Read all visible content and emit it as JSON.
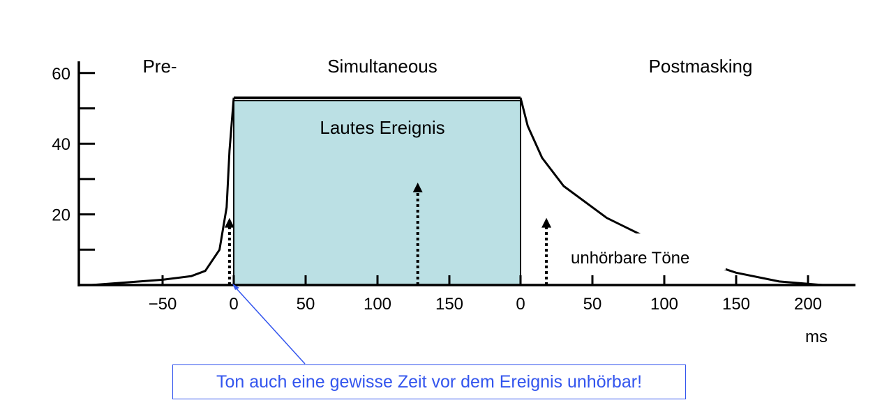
{
  "chart_data": {
    "type": "line",
    "y_ticks": [
      "60",
      "40",
      "20"
    ],
    "y_minor_ticks": [
      10,
      30,
      50
    ],
    "ylim": [
      0,
      60
    ],
    "segments": {
      "pre": {
        "x_ticks": [
          "−50",
          "0"
        ],
        "xlim": [
          -100,
          0
        ]
      },
      "simultaneous": {
        "x_ticks": [
          "0",
          "50",
          "100",
          "150"
        ],
        "xlim": [
          0,
          200
        ]
      },
      "post": {
        "x_ticks": [
          "0",
          "50",
          "100",
          "150",
          "200"
        ],
        "xlim": [
          0,
          230
        ]
      }
    },
    "x_unit": "ms",
    "section_labels": {
      "pre": "Pre-",
      "simultaneous": "Simultaneous",
      "post": "Postmasking"
    },
    "masker_label": "Lautes Ereignis",
    "masker_level": 53,
    "masker_color": "#bbe0e4",
    "threshold_curve": {
      "pre": [
        [
          -100,
          0
        ],
        [
          -50,
          1.5
        ],
        [
          -30,
          2.5
        ],
        [
          -20,
          4
        ],
        [
          -10,
          10
        ],
        [
          -5,
          22
        ],
        [
          -3,
          38
        ],
        [
          0,
          53
        ]
      ],
      "post": [
        [
          0,
          53
        ],
        [
          5,
          45
        ],
        [
          15,
          36
        ],
        [
          30,
          28
        ],
        [
          60,
          19
        ],
        [
          90,
          13
        ],
        [
          120,
          7.5
        ],
        [
          150,
          3.5
        ],
        [
          180,
          1
        ],
        [
          210,
          0
        ],
        [
          230,
          0
        ]
      ]
    },
    "probe_tones": [
      {
        "segment": "pre",
        "x": -3,
        "level": 19
      },
      {
        "segment": "simultaneous",
        "x": 128,
        "level": 29
      },
      {
        "segment": "post",
        "x": 18,
        "level": 19
      }
    ],
    "annotation_unhoerbar": "unhörbare Töne",
    "note": "Ton auch eine gewisse Zeit vor dem Ereignis unhörbar!",
    "note_color": "#3355ee"
  }
}
